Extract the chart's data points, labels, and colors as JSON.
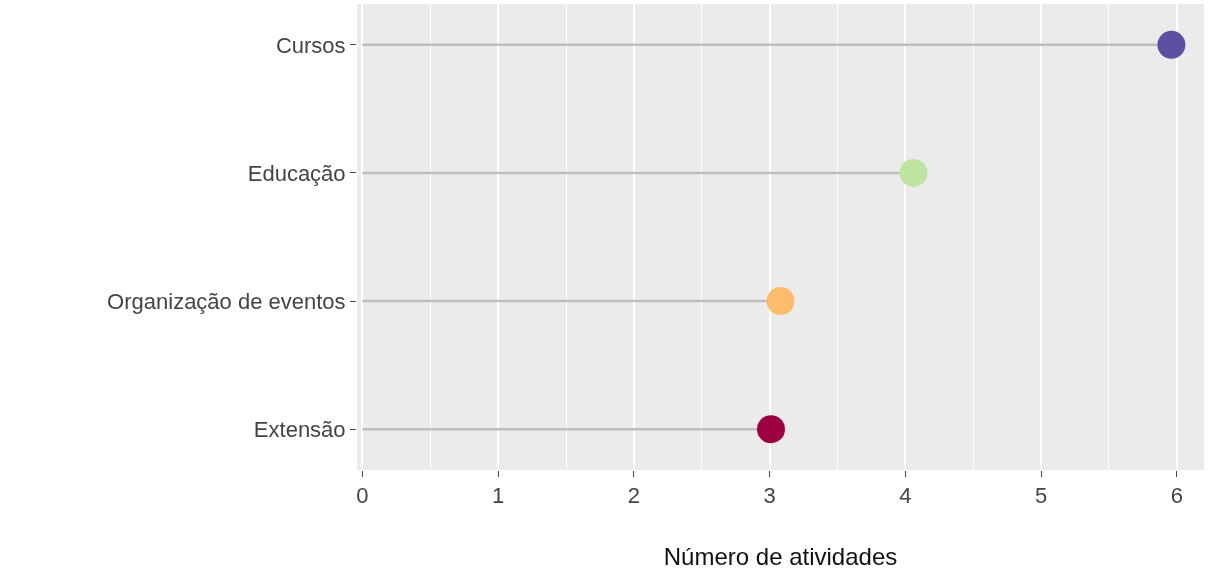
{
  "chart_data": {
    "type": "lollipop",
    "orientation": "horizontal",
    "xlabel": "Número de atividades",
    "categories": [
      "Cursos",
      "Educação",
      "Organização de eventos",
      "Extensão"
    ],
    "values": [
      5.96,
      4.06,
      3.08,
      3.01
    ],
    "colors": [
      "#5e4fa2",
      "#bde5a0",
      "#fdbb6c",
      "#9e0142"
    ],
    "xlim": [
      -0.04,
      6.2
    ],
    "xticks": [
      0,
      1,
      2,
      3,
      4,
      5,
      6
    ],
    "grid": "x",
    "marker": "circle"
  }
}
